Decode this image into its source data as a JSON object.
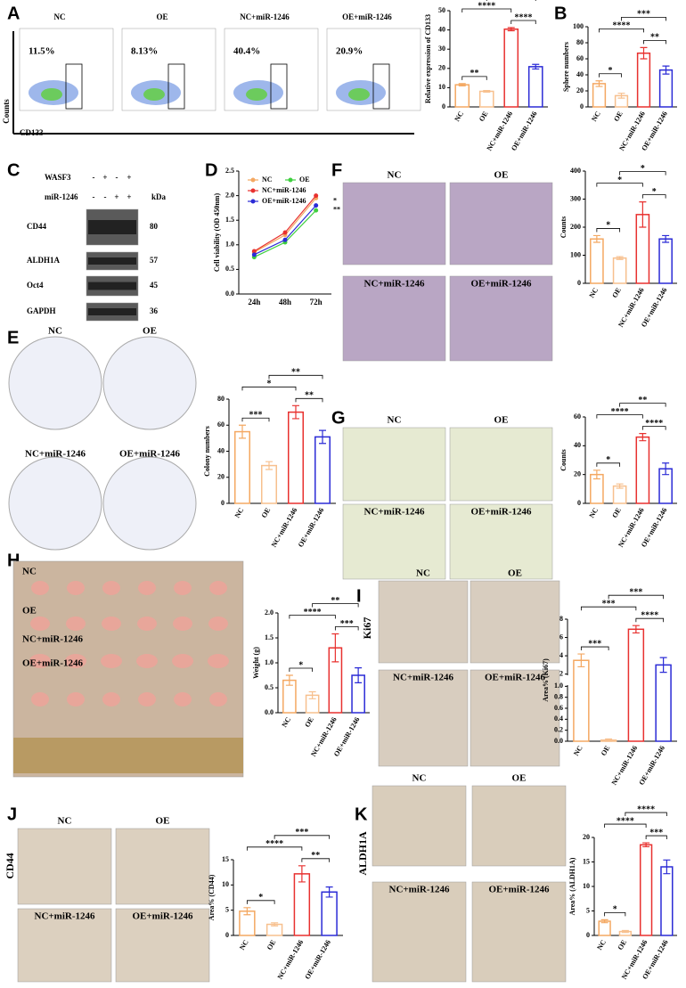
{
  "panels": {
    "letters": [
      "A",
      "B",
      "C",
      "D",
      "E",
      "F",
      "G",
      "H",
      "I",
      "J",
      "K"
    ]
  },
  "flow": {
    "groups": [
      "NC",
      "OE",
      "NC+miR-1246",
      "OE+miR-1246"
    ],
    "percentages": [
      "11.5%",
      "8.13%",
      "40.4%",
      "20.9%"
    ],
    "y_axis": "Counts",
    "x_axis": "CD133"
  },
  "western": {
    "rows": [
      {
        "name": "WASF3",
        "signs": [
          "-",
          "+",
          "-",
          "+"
        ]
      },
      {
        "name": "miR-1246",
        "signs": [
          "-",
          "-",
          "+",
          "+"
        ]
      }
    ],
    "unit": "kDa",
    "proteins": [
      {
        "name": "CD44",
        "kda": "80"
      },
      {
        "name": "ALDH1A",
        "kda": "57"
      },
      {
        "name": "Oct4",
        "kda": "45"
      },
      {
        "name": "GAPDH",
        "kda": "36"
      }
    ]
  },
  "image_labels": {
    "E": [
      "NC",
      "OE",
      "NC+miR-1246",
      "OE+miR-1246"
    ],
    "F": [
      "NC",
      "OE",
      "NC+miR-1246",
      "OE+miR-1246"
    ],
    "G": [
      "NC",
      "OE",
      "NC+miR-1246",
      "OE+miR-1246"
    ],
    "H": [
      "NC",
      "OE",
      "NC+miR-1246",
      "OE+miR-1246"
    ],
    "I": [
      "NC",
      "OE",
      "NC+miR-1246",
      "OE+miR-1246"
    ],
    "J": [
      "NC",
      "OE",
      "NC+miR-1246",
      "OE+miR-1246"
    ],
    "K": [
      "NC",
      "OE",
      "NC+miR-1246",
      "OE+miR-1246"
    ]
  },
  "stain_labels": {
    "I": "Ki67",
    "J": "CD44",
    "K": "ALDH1A"
  },
  "chart_data": [
    {
      "type": "bar",
      "ylabel": "Relative expression of CD133",
      "categories": [
        "NC",
        "OE",
        "NC+miR-1246",
        "OE+miR-1246"
      ],
      "values": [
        11.5,
        8.1,
        40.4,
        20.9
      ],
      "errors": [
        0.6,
        0.4,
        0.8,
        1.2
      ],
      "colors": [
        "#f4a862",
        "#f7c08e",
        "#e8312f",
        "#2b2bd6"
      ],
      "ylim": [
        0,
        50
      ],
      "yticks": [
        0,
        10,
        20,
        30,
        40,
        50
      ],
      "significance": [
        {
          "pair": [
            0,
            1
          ],
          "label": "**"
        },
        {
          "pair": [
            2,
            3
          ],
          "label": "****"
        },
        {
          "pair": [
            0,
            2
          ],
          "label": "****"
        },
        {
          "pair": [
            1,
            3
          ],
          "label": "****"
        }
      ]
    },
    {
      "type": "bar",
      "ylabel": "Sphere numbers",
      "categories": [
        "NC",
        "OE",
        "NC+miR-1246",
        "OE+miR-1246"
      ],
      "values": [
        29,
        14,
        67,
        46
      ],
      "errors": [
        3.5,
        3,
        7,
        5
      ],
      "colors": [
        "#f4a862",
        "#f7c08e",
        "#e8312f",
        "#2b2bd6"
      ],
      "ylim": [
        0,
        100
      ],
      "yticks": [
        0,
        20,
        40,
        60,
        80,
        100
      ],
      "significance": [
        {
          "pair": [
            0,
            1
          ],
          "label": "*"
        },
        {
          "pair": [
            2,
            3
          ],
          "label": "**"
        },
        {
          "pair": [
            0,
            2
          ],
          "label": "****"
        },
        {
          "pair": [
            1,
            3
          ],
          "label": "***"
        }
      ]
    },
    {
      "type": "line",
      "ylabel": "Cell viability (OD 450nm)",
      "categories": [
        "24h",
        "48h",
        "72h"
      ],
      "ylim": [
        0,
        2.5
      ],
      "yticks": [
        {
          "value": 0,
          "label": "0.0"
        },
        0.5,
        {
          "value": 1,
          "label": "1.0"
        },
        1.5,
        {
          "value": 2,
          "label": "2.0"
        },
        2.5
      ],
      "series": [
        {
          "name": "NC",
          "color": "#f4a862",
          "values": [
            0.85,
            1.2,
            1.95
          ]
        },
        {
          "name": "OE",
          "color": "#3fcf3f",
          "values": [
            0.75,
            1.05,
            1.7
          ]
        },
        {
          "name": "NC+miR-1246",
          "color": "#e8312f",
          "values": [
            0.87,
            1.25,
            2.0
          ]
        },
        {
          "name": "OE+miR-1246",
          "color": "#2b2bd6",
          "values": [
            0.8,
            1.1,
            1.8
          ]
        }
      ],
      "annotations": [
        "*",
        "**"
      ]
    },
    {
      "type": "bar",
      "ylabel": "Colony numbers",
      "categories": [
        "NC",
        "OE",
        "NC+miR-1246",
        "OE+miR-1246"
      ],
      "values": [
        55,
        29,
        70,
        51
      ],
      "errors": [
        5,
        3,
        5,
        5
      ],
      "colors": [
        "#f4a862",
        "#f7c08e",
        "#e8312f",
        "#2b2bd6"
      ],
      "ylim": [
        0,
        80
      ],
      "yticks": [
        0,
        20,
        40,
        60,
        80
      ],
      "significance": [
        {
          "pair": [
            0,
            1
          ],
          "label": "***"
        },
        {
          "pair": [
            2,
            3
          ],
          "label": "**"
        },
        {
          "pair": [
            0,
            2
          ],
          "label": "*"
        },
        {
          "pair": [
            1,
            3
          ],
          "label": "**"
        }
      ]
    },
    {
      "type": "bar",
      "ylabel": "Counts",
      "categories": [
        "NC",
        "OE",
        "NC+miR-1246",
        "OE+miR-1246"
      ],
      "values": [
        158,
        90,
        245,
        158
      ],
      "errors": [
        12,
        5,
        45,
        12
      ],
      "colors": [
        "#f4a862",
        "#f7c08e",
        "#e8312f",
        "#2b2bd6"
      ],
      "ylim": [
        0,
        400
      ],
      "yticks": [
        0,
        100,
        200,
        300,
        400
      ],
      "significance": [
        {
          "pair": [
            0,
            1
          ],
          "label": "*"
        },
        {
          "pair": [
            2,
            3
          ],
          "label": "*"
        },
        {
          "pair": [
            0,
            2
          ],
          "label": "*"
        },
        {
          "pair": [
            1,
            3
          ],
          "label": "*"
        }
      ]
    },
    {
      "type": "bar",
      "ylabel": "Counts",
      "categories": [
        "NC",
        "OE",
        "NC+miR-1246",
        "OE+miR-1246"
      ],
      "values": [
        20,
        12,
        46,
        24
      ],
      "errors": [
        3,
        1.5,
        2.5,
        4
      ],
      "colors": [
        "#f4a862",
        "#f7c08e",
        "#e8312f",
        "#2b2bd6"
      ],
      "ylim": [
        0,
        60
      ],
      "yticks": [
        0,
        20,
        40,
        60
      ],
      "significance": [
        {
          "pair": [
            0,
            1
          ],
          "label": "*"
        },
        {
          "pair": [
            2,
            3
          ],
          "label": "****"
        },
        {
          "pair": [
            0,
            2
          ],
          "label": "****"
        },
        {
          "pair": [
            1,
            3
          ],
          "label": "**"
        }
      ]
    },
    {
      "type": "bar",
      "ylabel": "Weight (g)",
      "categories": [
        "NC",
        "OE",
        "NC+miR-1246",
        "OE+miR-1246"
      ],
      "values": [
        0.65,
        0.35,
        1.3,
        0.75
      ],
      "errors": [
        0.1,
        0.07,
        0.28,
        0.15
      ],
      "colors": [
        "#f4a862",
        "#f7c08e",
        "#e8312f",
        "#2b2bd6"
      ],
      "ylim": [
        0,
        2
      ],
      "yticks": [
        {
          "value": 0,
          "label": "0.0"
        },
        0.5,
        {
          "value": 1,
          "label": "1.0"
        },
        1.5,
        {
          "value": 2,
          "label": "2.0"
        }
      ],
      "significance": [
        {
          "pair": [
            0,
            1
          ],
          "label": "*"
        },
        {
          "pair": [
            2,
            3
          ],
          "label": "***"
        },
        {
          "pair": [
            0,
            2
          ],
          "label": "****"
        },
        {
          "pair": [
            1,
            3
          ],
          "label": "**"
        }
      ]
    },
    {
      "type": "bar",
      "ylabel": "Area% (Ki67)",
      "categories": [
        "NC",
        "OE",
        "NC+miR-1246",
        "OE+miR-1246"
      ],
      "values": [
        3.5,
        0.02,
        6.9,
        3.0
      ],
      "errors": [
        0.7,
        0.02,
        0.4,
        0.8
      ],
      "colors": [
        "#f4a862",
        "#f7c08e",
        "#e8312f",
        "#2b2bd6"
      ],
      "ylim": [
        0,
        8
      ],
      "ybreak": [
        1,
        2
      ],
      "yticks": [
        {
          "value": 0,
          "label": "0.0"
        },
        0.2,
        0.4,
        0.6,
        0.8,
        {
          "value": 1,
          "label": "1.0"
        },
        2,
        4,
        6,
        8
      ],
      "significance": [
        {
          "pair": [
            0,
            1
          ],
          "label": "***"
        },
        {
          "pair": [
            2,
            3
          ],
          "label": "****"
        },
        {
          "pair": [
            0,
            2
          ],
          "label": "***"
        },
        {
          "pair": [
            1,
            3
          ],
          "label": "***"
        }
      ]
    },
    {
      "type": "bar",
      "ylabel": "Area% (CD44)",
      "categories": [
        "NC",
        "OE",
        "NC+miR-1246",
        "OE+miR-1246"
      ],
      "values": [
        4.8,
        2.2,
        12.2,
        8.6
      ],
      "errors": [
        0.7,
        0.3,
        1.6,
        1
      ],
      "colors": [
        "#f4a862",
        "#f7c08e",
        "#e8312f",
        "#2b2bd6"
      ],
      "ylim": [
        0,
        15
      ],
      "yticks": [
        0,
        5,
        10,
        15
      ],
      "significance": [
        {
          "pair": [
            0,
            1
          ],
          "label": "*"
        },
        {
          "pair": [
            2,
            3
          ],
          "label": "**"
        },
        {
          "pair": [
            0,
            2
          ],
          "label": "****"
        },
        {
          "pair": [
            1,
            3
          ],
          "label": "***"
        }
      ]
    },
    {
      "type": "bar",
      "ylabel": "Area% (ALDH1A)",
      "categories": [
        "NC",
        "OE",
        "NC+miR-1246",
        "OE+miR-1246"
      ],
      "values": [
        2.9,
        0.8,
        18.5,
        14.0
      ],
      "errors": [
        0.3,
        0.2,
        0.4,
        1.4
      ],
      "colors": [
        "#f4a862",
        "#f7c08e",
        "#e8312f",
        "#2b2bd6"
      ],
      "ylim": [
        0,
        20
      ],
      "yticks": [
        0,
        5,
        10,
        15,
        20
      ],
      "significance": [
        {
          "pair": [
            0,
            1
          ],
          "label": "*"
        },
        {
          "pair": [
            2,
            3
          ],
          "label": "***"
        },
        {
          "pair": [
            0,
            2
          ],
          "label": "****"
        },
        {
          "pair": [
            1,
            3
          ],
          "label": "****"
        }
      ]
    }
  ]
}
